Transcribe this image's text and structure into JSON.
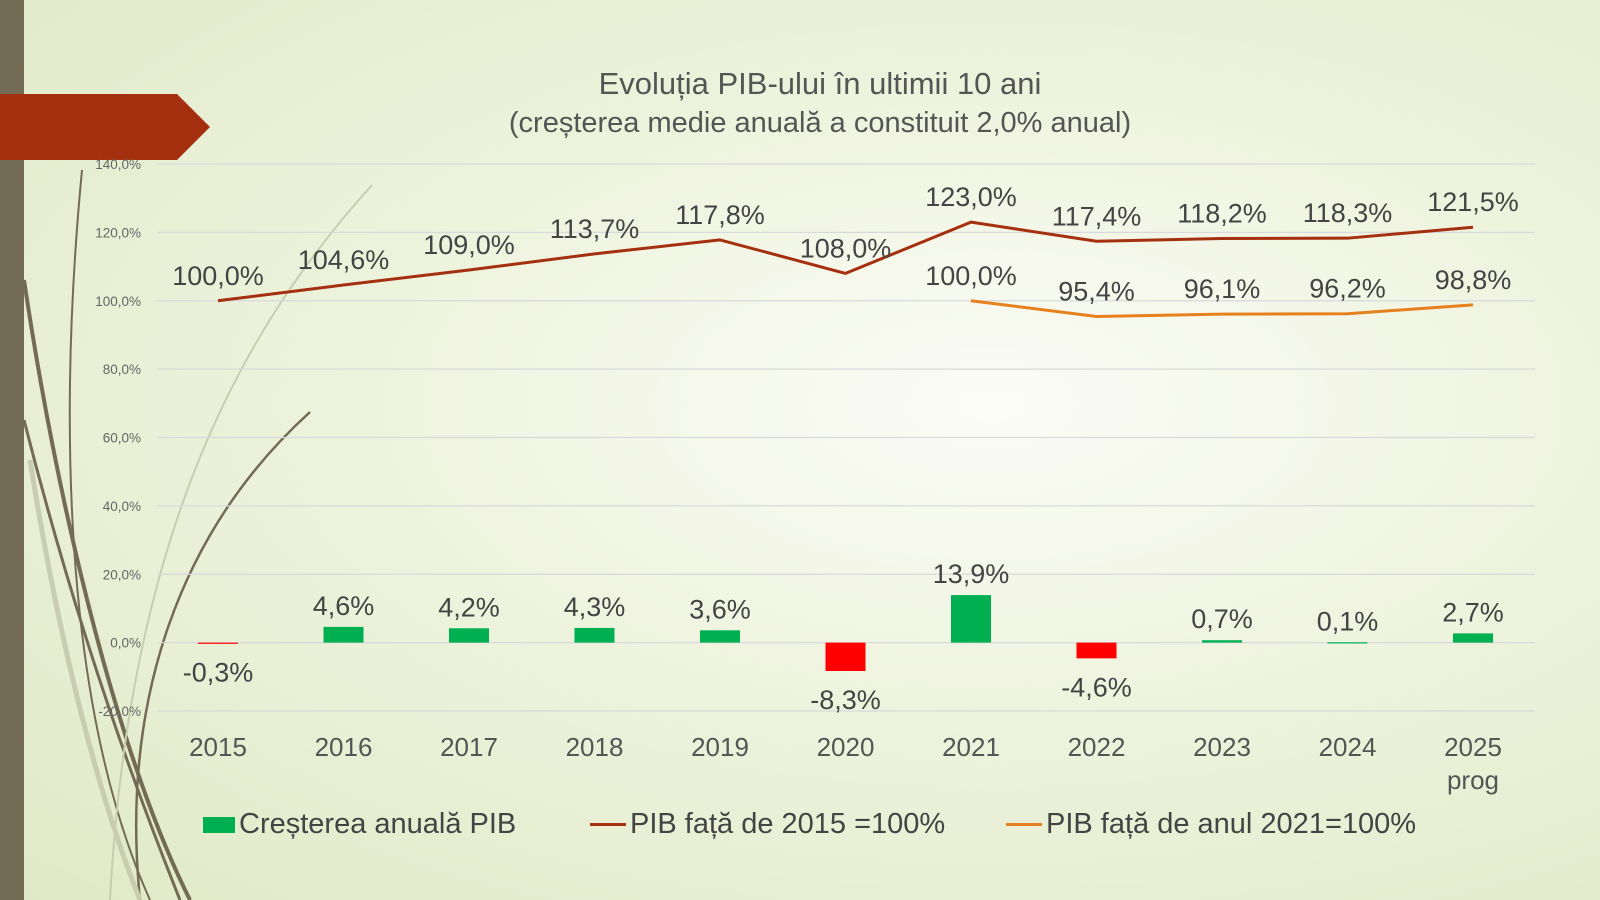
{
  "chart_data": {
    "type": "bar+line",
    "title": "Evoluția PIB-ului în ultimii 10 ani",
    "subtitle": "(creșterea medie anuală a constituit 2,0% anual)",
    "categories": [
      "2015",
      "2016",
      "2017",
      "2018",
      "2019",
      "2020",
      "2021",
      "2022",
      "2023",
      "2024",
      "2025 prog"
    ],
    "ylim": [
      -20,
      140
    ],
    "yticks": [
      -20,
      0,
      20,
      40,
      60,
      80,
      100,
      120,
      140
    ],
    "ytick_labels": [
      "-20,0%",
      "0,0%",
      "20,0%",
      "40,0%",
      "60,0%",
      "80,0%",
      "100,0%",
      "120,0%",
      "140,0%"
    ],
    "grid": true,
    "legend_position": "bottom",
    "series": [
      {
        "name": "Creșterea anuală PIB",
        "type": "bar",
        "color": "#00b050",
        "negative_color": "#ff0000",
        "values": [
          -0.3,
          4.6,
          4.2,
          4.3,
          3.6,
          -8.3,
          13.9,
          -4.6,
          0.7,
          0.1,
          2.7
        ],
        "labels": [
          "-0,3%",
          "4,6%",
          "4,2%",
          "4,3%",
          "3,6%",
          "-8,3%",
          "13,9%",
          "-4,6%",
          "0,7%",
          "0,1%",
          "2,7%"
        ]
      },
      {
        "name": "PIB față de 2015 =100%",
        "type": "line",
        "color": "#a5300f",
        "values": [
          100.0,
          104.6,
          109.0,
          113.7,
          117.8,
          108.0,
          123.0,
          117.4,
          118.2,
          118.3,
          121.5
        ],
        "labels": [
          "100,0%",
          "104,6%",
          "109,0%",
          "113,7%",
          "117,8%",
          "108,0%",
          "123,0%",
          "117,4%",
          "118,2%",
          "118,3%",
          "121,5%"
        ]
      },
      {
        "name": "PIB față de anul 2021=100%",
        "type": "line",
        "color": "#e6811e",
        "values": [
          null,
          null,
          null,
          null,
          null,
          null,
          100.0,
          95.4,
          96.1,
          96.2,
          98.8
        ],
        "labels": [
          null,
          null,
          null,
          null,
          null,
          null,
          "100,0%",
          "95,4%",
          "96,1%",
          "96,2%",
          "98,8%"
        ]
      }
    ]
  },
  "colors": {
    "stripe": "#736b53",
    "banner": "#a5300f"
  }
}
